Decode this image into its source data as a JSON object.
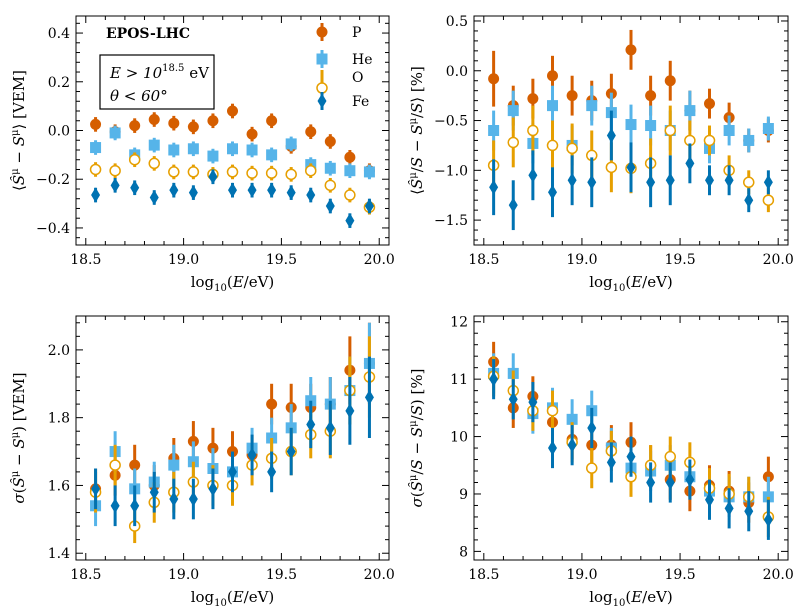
{
  "figure": {
    "model_label": "EPOS-LHC",
    "cut_energy": "E > 10",
    "cut_energy_exp": "18.5",
    "cut_energy_unit": " eV",
    "cut_zenith": "θ < 60°"
  },
  "legend": [
    {
      "name": "P",
      "color": "#D55E00",
      "marker": "circle-filled"
    },
    {
      "name": "He",
      "color": "#56B4E9",
      "marker": "square-filled"
    },
    {
      "name": "O",
      "color": "#E69F00",
      "marker": "circle-open"
    },
    {
      "name": "Fe",
      "color": "#0072B2",
      "marker": "diamond-filled"
    }
  ],
  "chart_data": [
    {
      "type": "scatter",
      "id": "top-left",
      "xlabel": "log10(E/eV)",
      "ylabel": "⟨Ŝμ − Sμ⟩ [VEM]",
      "xlim": [
        18.45,
        20.05
      ],
      "ylim": [
        -0.47,
        0.47
      ],
      "xticks": [
        18.5,
        19.0,
        19.5,
        20.0
      ],
      "xtick_labels": [
        "18.5",
        "19.0",
        "19.5",
        "20.0"
      ],
      "yticks": [
        -0.4,
        -0.2,
        0.0,
        0.2,
        0.4
      ],
      "ytick_labels": [
        "−0.4",
        "−0.2",
        "0.0",
        "0.2",
        "0.4"
      ],
      "series": [
        {
          "name": "P",
          "x": [
            18.55,
            18.65,
            18.75,
            18.85,
            18.95,
            19.05,
            19.15,
            19.25,
            19.35,
            19.45,
            19.55,
            19.65,
            19.75,
            19.85,
            19.95
          ],
          "y": [
            0.025,
            -0.005,
            0.02,
            0.045,
            0.03,
            0.015,
            0.04,
            0.08,
            -0.015,
            0.04,
            -0.065,
            -0.005,
            -0.045,
            -0.11,
            -0.165
          ],
          "err": [
            0.03,
            0.03,
            0.03,
            0.03,
            0.03,
            0.03,
            0.03,
            0.03,
            0.03,
            0.03,
            0.03,
            0.03,
            0.03,
            0.03,
            0.03
          ]
        },
        {
          "name": "He",
          "x": [
            18.55,
            18.65,
            18.75,
            18.85,
            18.95,
            19.05,
            19.15,
            19.25,
            19.35,
            19.45,
            19.55,
            19.65,
            19.75,
            19.85,
            19.95
          ],
          "y": [
            -0.07,
            -0.01,
            -0.1,
            -0.06,
            -0.08,
            -0.075,
            -0.105,
            -0.075,
            -0.08,
            -0.1,
            -0.055,
            -0.14,
            -0.155,
            -0.165,
            -0.17
          ],
          "err": [
            0.03,
            0.03,
            0.03,
            0.03,
            0.03,
            0.03,
            0.03,
            0.03,
            0.03,
            0.03,
            0.03,
            0.03,
            0.03,
            0.03,
            0.03
          ]
        },
        {
          "name": "O",
          "x": [
            18.55,
            18.65,
            18.75,
            18.85,
            18.95,
            19.05,
            19.15,
            19.25,
            19.35,
            19.45,
            19.55,
            19.65,
            19.75,
            19.85,
            19.95
          ],
          "y": [
            -0.16,
            -0.165,
            -0.12,
            -0.135,
            -0.17,
            -0.17,
            -0.18,
            -0.17,
            -0.175,
            -0.175,
            -0.18,
            -0.165,
            -0.225,
            -0.265,
            -0.315
          ],
          "err": [
            0.03,
            0.03,
            0.03,
            0.03,
            0.03,
            0.03,
            0.03,
            0.03,
            0.03,
            0.03,
            0.03,
            0.03,
            0.03,
            0.03,
            0.03
          ]
        },
        {
          "name": "Fe",
          "x": [
            18.55,
            18.65,
            18.75,
            18.85,
            18.95,
            19.05,
            19.15,
            19.25,
            19.35,
            19.45,
            19.55,
            19.65,
            19.75,
            19.85,
            19.95
          ],
          "y": [
            -0.265,
            -0.225,
            -0.235,
            -0.275,
            -0.245,
            -0.255,
            -0.19,
            -0.245,
            -0.245,
            -0.245,
            -0.255,
            -0.265,
            -0.31,
            -0.37,
            -0.31
          ],
          "err": [
            0.03,
            0.03,
            0.03,
            0.03,
            0.03,
            0.03,
            0.03,
            0.03,
            0.03,
            0.03,
            0.03,
            0.03,
            0.03,
            0.03,
            0.03
          ]
        }
      ]
    },
    {
      "type": "scatter",
      "id": "top-right",
      "xlabel": "log10(E/eV)",
      "ylabel": "⟨Ŝμ/S − Sμ/S⟩ [%]",
      "xlim": [
        18.45,
        20.05
      ],
      "ylim": [
        -1.75,
        0.55
      ],
      "xticks": [
        18.5,
        19.0,
        19.5,
        20.0
      ],
      "xtick_labels": [
        "18.5",
        "19.0",
        "19.5",
        "20.0"
      ],
      "yticks": [
        -1.5,
        -1.0,
        -0.5,
        0.0,
        0.5
      ],
      "ytick_labels": [
        "−1.5",
        "−1.0",
        "−0.5",
        "0.0",
        "0.5"
      ],
      "series": [
        {
          "name": "P",
          "x": [
            18.55,
            18.65,
            18.75,
            18.85,
            18.95,
            19.05,
            19.15,
            19.25,
            19.35,
            19.45,
            19.55,
            19.65,
            19.75,
            19.85,
            19.95
          ],
          "y": [
            -0.08,
            -0.35,
            -0.28,
            -0.05,
            -0.25,
            -0.3,
            -0.23,
            0.21,
            -0.25,
            -0.1,
            -0.4,
            -0.33,
            -0.47,
            -0.7,
            -0.6
          ],
          "err": [
            0.28,
            0.2,
            0.2,
            0.2,
            0.2,
            0.2,
            0.2,
            0.2,
            0.2,
            0.2,
            0.2,
            0.15,
            0.15,
            0.12,
            0.12
          ]
        },
        {
          "name": "He",
          "x": [
            18.55,
            18.65,
            18.75,
            18.85,
            18.95,
            19.05,
            19.15,
            19.25,
            19.35,
            19.45,
            19.55,
            19.65,
            19.75,
            19.85,
            19.95
          ],
          "y": [
            -0.6,
            -0.4,
            -0.73,
            -0.35,
            -0.75,
            -0.35,
            -0.42,
            -0.54,
            -0.55,
            -0.6,
            -0.4,
            -0.78,
            -0.6,
            -0.7,
            -0.58
          ],
          "err": [
            0.2,
            0.2,
            0.2,
            0.2,
            0.2,
            0.2,
            0.2,
            0.2,
            0.2,
            0.2,
            0.2,
            0.15,
            0.15,
            0.12,
            0.12
          ]
        },
        {
          "name": "O",
          "x": [
            18.55,
            18.65,
            18.75,
            18.85,
            18.95,
            19.05,
            19.15,
            19.25,
            19.35,
            19.45,
            19.55,
            19.65,
            19.75,
            19.85,
            19.95
          ],
          "y": [
            -0.95,
            -0.72,
            -0.6,
            -0.75,
            -0.78,
            -0.85,
            -0.97,
            -0.98,
            -0.93,
            -0.6,
            -0.7,
            -0.7,
            -1.0,
            -1.12,
            -1.3
          ],
          "err": [
            0.25,
            0.25,
            0.25,
            0.25,
            0.25,
            0.25,
            0.25,
            0.25,
            0.25,
            0.25,
            0.2,
            0.15,
            0.15,
            0.12,
            0.12
          ]
        },
        {
          "name": "Fe",
          "x": [
            18.55,
            18.65,
            18.75,
            18.85,
            18.95,
            19.05,
            19.15,
            19.25,
            19.35,
            19.45,
            19.55,
            19.65,
            19.75,
            19.85,
            19.95
          ],
          "y": [
            -1.17,
            -1.35,
            -1.05,
            -1.22,
            -1.1,
            -1.12,
            -0.65,
            -0.97,
            -1.12,
            -1.1,
            -0.93,
            -1.1,
            -1.1,
            -1.3,
            -1.12
          ],
          "err": [
            0.28,
            0.25,
            0.25,
            0.25,
            0.25,
            0.25,
            0.25,
            0.25,
            0.25,
            0.25,
            0.2,
            0.15,
            0.15,
            0.12,
            0.12
          ]
        }
      ]
    },
    {
      "type": "scatter",
      "id": "bottom-left",
      "xlabel": "log10(E/eV)",
      "ylabel": "σ(Ŝμ − Sμ) [VEM]",
      "xlim": [
        18.45,
        20.05
      ],
      "ylim": [
        1.38,
        2.1
      ],
      "xticks": [
        18.5,
        19.0,
        19.5,
        20.0
      ],
      "xtick_labels": [
        "18.5",
        "19.0",
        "19.5",
        "20.0"
      ],
      "yticks": [
        1.4,
        1.6,
        1.8,
        2.0
      ],
      "ytick_labels": [
        "1.4",
        "1.6",
        "1.8",
        "2.0"
      ],
      "series": [
        {
          "name": "P",
          "x": [
            18.55,
            18.65,
            18.75,
            18.85,
            18.95,
            19.05,
            19.15,
            19.25,
            19.35,
            19.45,
            19.55,
            19.65,
            19.75,
            19.85,
            19.95
          ],
          "y": [
            1.59,
            1.63,
            1.66,
            1.6,
            1.68,
            1.73,
            1.71,
            1.7,
            1.69,
            1.84,
            1.83,
            1.83,
            1.84,
            1.94,
            1.96
          ],
          "err": [
            0.06,
            0.06,
            0.06,
            0.06,
            0.06,
            0.06,
            0.06,
            0.06,
            0.06,
            0.06,
            0.07,
            0.07,
            0.08,
            0.1,
            0.12
          ]
        },
        {
          "name": "He",
          "x": [
            18.55,
            18.65,
            18.75,
            18.85,
            18.95,
            19.05,
            19.15,
            19.25,
            19.35,
            19.45,
            19.55,
            19.65,
            19.75,
            19.85,
            19.95
          ],
          "y": [
            1.54,
            1.7,
            1.59,
            1.61,
            1.66,
            1.67,
            1.65,
            1.64,
            1.71,
            1.74,
            1.77,
            1.85,
            1.84,
            1.88,
            1.96
          ],
          "err": [
            0.06,
            0.06,
            0.06,
            0.06,
            0.06,
            0.06,
            0.06,
            0.06,
            0.06,
            0.06,
            0.07,
            0.07,
            0.08,
            0.1,
            0.12
          ]
        },
        {
          "name": "O",
          "x": [
            18.55,
            18.65,
            18.75,
            18.85,
            18.95,
            19.05,
            19.15,
            19.25,
            19.35,
            19.45,
            19.55,
            19.65,
            19.75,
            19.85,
            19.95
          ],
          "y": [
            1.58,
            1.66,
            1.48,
            1.55,
            1.58,
            1.61,
            1.6,
            1.6,
            1.66,
            1.68,
            1.7,
            1.75,
            1.76,
            1.88,
            1.92
          ],
          "err": [
            0.06,
            0.06,
            0.05,
            0.06,
            0.06,
            0.06,
            0.06,
            0.06,
            0.06,
            0.06,
            0.07,
            0.07,
            0.08,
            0.1,
            0.12
          ]
        },
        {
          "name": "Fe",
          "x": [
            18.55,
            18.65,
            18.75,
            18.85,
            18.95,
            19.05,
            19.15,
            19.25,
            19.35,
            19.45,
            19.55,
            19.65,
            19.75,
            19.85,
            19.95
          ],
          "y": [
            1.59,
            1.54,
            1.54,
            1.58,
            1.56,
            1.56,
            1.59,
            1.64,
            1.69,
            1.64,
            1.7,
            1.78,
            1.77,
            1.82,
            1.86
          ],
          "err": [
            0.06,
            0.06,
            0.06,
            0.06,
            0.06,
            0.06,
            0.06,
            0.06,
            0.06,
            0.06,
            0.07,
            0.07,
            0.08,
            0.1,
            0.12
          ]
        }
      ]
    },
    {
      "type": "scatter",
      "id": "bottom-right",
      "xlabel": "log10(E/eV)",
      "ylabel": "σ(Ŝμ/S − Sμ/S) [%]",
      "xlim": [
        18.45,
        20.05
      ],
      "ylim": [
        7.85,
        12.1
      ],
      "xticks": [
        18.5,
        19.0,
        19.5,
        20.0
      ],
      "xtick_labels": [
        "18.5",
        "19.0",
        "19.5",
        "20.0"
      ],
      "yticks": [
        8,
        9,
        10,
        11,
        12
      ],
      "ytick_labels": [
        "8",
        "9",
        "10",
        "11",
        "12"
      ],
      "series": [
        {
          "name": "P",
          "x": [
            18.55,
            18.65,
            18.75,
            18.85,
            18.95,
            19.05,
            19.15,
            19.25,
            19.35,
            19.45,
            19.55,
            19.65,
            19.75,
            19.85,
            19.95
          ],
          "y": [
            11.3,
            10.5,
            10.7,
            10.25,
            9.95,
            9.85,
            9.85,
            9.9,
            9.5,
            9.25,
            9.05,
            9.15,
            9.05,
            8.85,
            9.3
          ],
          "err": [
            0.35,
            0.35,
            0.35,
            0.35,
            0.35,
            0.35,
            0.35,
            0.35,
            0.35,
            0.35,
            0.35,
            0.35,
            0.35,
            0.35,
            0.35
          ]
        },
        {
          "name": "He",
          "x": [
            18.55,
            18.65,
            18.75,
            18.85,
            18.95,
            19.05,
            19.15,
            19.25,
            19.35,
            19.45,
            19.55,
            19.65,
            19.75,
            19.85,
            19.95
          ],
          "y": [
            11.1,
            11.1,
            10.4,
            10.5,
            10.3,
            10.45,
            9.8,
            9.45,
            9.4,
            9.5,
            9.3,
            9.05,
            8.95,
            8.95,
            8.95
          ],
          "err": [
            0.35,
            0.35,
            0.35,
            0.35,
            0.35,
            0.35,
            0.35,
            0.35,
            0.35,
            0.35,
            0.35,
            0.35,
            0.35,
            0.35,
            0.35
          ]
        },
        {
          "name": "O",
          "x": [
            18.55,
            18.65,
            18.75,
            18.85,
            18.95,
            19.05,
            19.15,
            19.25,
            19.35,
            19.45,
            19.55,
            19.65,
            19.75,
            19.85,
            19.95
          ],
          "y": [
            11.05,
            10.8,
            10.45,
            10.45,
            9.9,
            9.45,
            9.75,
            9.3,
            9.5,
            9.65,
            9.55,
            9.1,
            9.0,
            8.95,
            8.6
          ],
          "err": [
            0.35,
            0.35,
            0.35,
            0.35,
            0.35,
            0.35,
            0.35,
            0.35,
            0.35,
            0.35,
            0.35,
            0.35,
            0.35,
            0.35,
            0.35
          ]
        },
        {
          "name": "Fe",
          "x": [
            18.55,
            18.65,
            18.75,
            18.85,
            18.95,
            19.05,
            19.15,
            19.25,
            19.35,
            19.45,
            19.55,
            19.65,
            19.75,
            19.85,
            19.95
          ],
          "y": [
            11.0,
            10.65,
            10.6,
            9.8,
            9.85,
            10.15,
            9.55,
            9.65,
            9.2,
            9.2,
            9.25,
            8.9,
            8.75,
            8.7,
            8.55
          ],
          "err": [
            0.35,
            0.35,
            0.35,
            0.35,
            0.35,
            0.35,
            0.35,
            0.35,
            0.35,
            0.35,
            0.35,
            0.35,
            0.35,
            0.35,
            0.35
          ]
        }
      ]
    }
  ]
}
